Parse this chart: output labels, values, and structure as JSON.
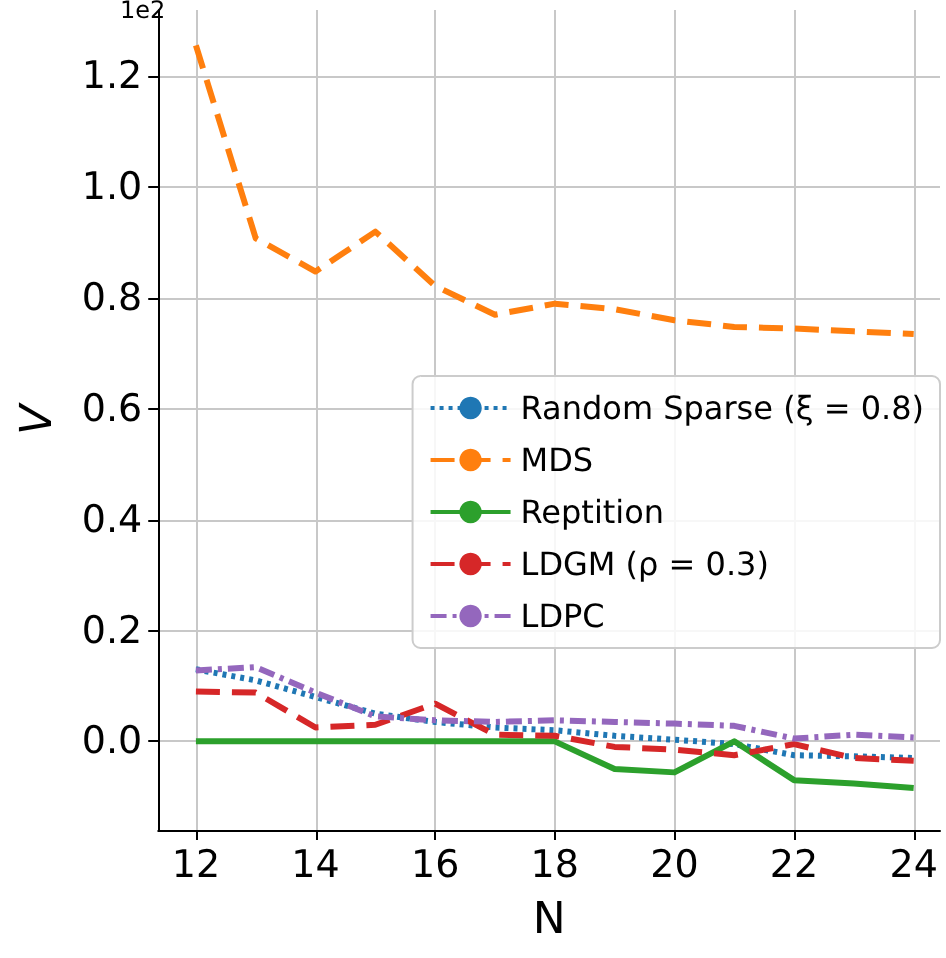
{
  "chart_data": {
    "type": "line",
    "xlabel": "N",
    "ylabel": "V",
    "annotations": [
      "1e2"
    ],
    "x": [
      12,
      13,
      14,
      15,
      16,
      17,
      18,
      19,
      20,
      21,
      22,
      23,
      24
    ],
    "xlim": [
      11.37,
      24.44
    ],
    "xticks": [
      12,
      14,
      16,
      18,
      20,
      22,
      24
    ],
    "ylim": [
      -0.16,
      1.32
    ],
    "yticks": [
      {
        "value": 0,
        "label": "0.0"
      },
      0.2,
      0.4,
      0.6,
      0.8,
      {
        "value": 1,
        "label": "1.0"
      },
      1.2
    ],
    "grid": true,
    "legend": "right",
    "marker": "none",
    "series": [
      {
        "name": "Random Sparse (ξ = 0.8)",
        "color": "#1f77b4",
        "line_style": "dotted",
        "values": [
          0.13,
          0.11,
          0.08,
          0.05,
          0.035,
          0.025,
          0.02,
          0.01,
          0.003,
          -0.005,
          -0.025,
          -0.027,
          -0.03
        ]
      },
      {
        "name": "MDS",
        "color": "#ff7f0e",
        "line_style": "dashed",
        "values": [
          1.256,
          0.908,
          0.848,
          0.92,
          0.822,
          0.77,
          0.79,
          0.78,
          0.76,
          0.748,
          0.745,
          0.74,
          0.735
        ]
      },
      {
        "name": "Reptition",
        "color": "#2ca02c",
        "line_style": "solid",
        "values": [
          0,
          0,
          0,
          0,
          0,
          0,
          0,
          -0.05,
          -0.056,
          0,
          -0.07,
          -0.076,
          -0.084
        ]
      },
      {
        "name": "LDGM (ρ = 0.3)",
        "color": "#d62728",
        "line_style": "dashed",
        "values": [
          0.09,
          0.088,
          0.025,
          0.03,
          0.068,
          0.012,
          0.01,
          -0.01,
          -0.015,
          -0.025,
          -0.005,
          -0.03,
          -0.035
        ]
      },
      {
        "name": "LDPC",
        "color": "#9467bd",
        "line_style": "dashdot",
        "values": [
          0.128,
          0.134,
          0.088,
          0.045,
          0.038,
          0.035,
          0.038,
          0.035,
          0.032,
          0.028,
          0.005,
          0.012,
          0.007
        ]
      }
    ]
  }
}
